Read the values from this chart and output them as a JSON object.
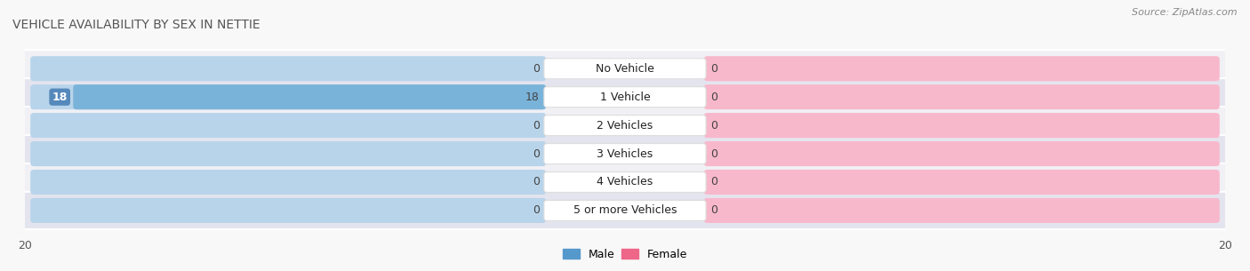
{
  "title": "VEHICLE AVAILABILITY BY SEX IN NETTIE",
  "source": "Source: ZipAtlas.com",
  "categories": [
    "No Vehicle",
    "1 Vehicle",
    "2 Vehicles",
    "3 Vehicles",
    "4 Vehicles",
    "5 or more Vehicles"
  ],
  "male_values": [
    0,
    18,
    0,
    0,
    0,
    0
  ],
  "female_values": [
    0,
    0,
    0,
    0,
    0,
    0
  ],
  "male_color_bar": "#7ab3d9",
  "male_color_bg": "#b8d4ea",
  "female_color_bar": "#f080a0",
  "female_color_bg": "#f8b8cc",
  "male_legend_color": "#5599cc",
  "female_legend_color": "#ee6688",
  "xlim": 20,
  "row_bg_light": "#f0f0f5",
  "row_bg_dark": "#e4e4ee",
  "title_fontsize": 10,
  "source_fontsize": 8,
  "axis_fontsize": 9,
  "label_fontsize": 9,
  "value_fontsize": 9,
  "val_label_fontsize": 9
}
